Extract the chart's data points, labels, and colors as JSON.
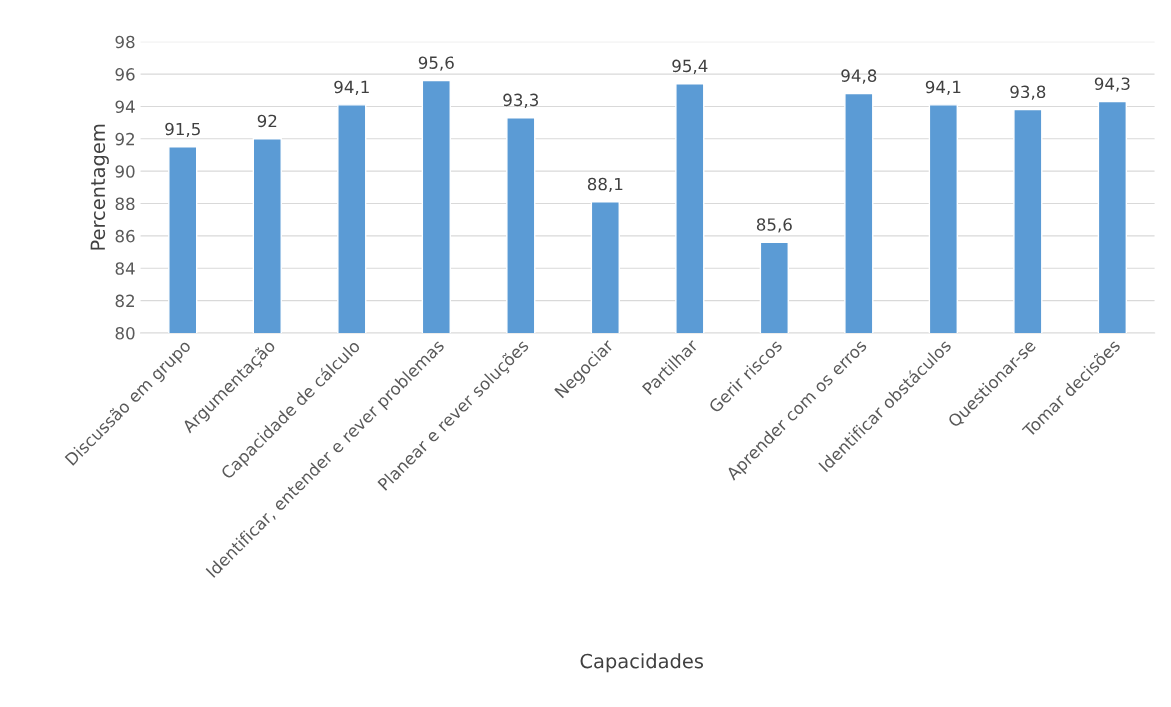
{
  "chart_data": {
    "type": "bar",
    "xlabel": "Capacidades",
    "ylabel": "Percentagem",
    "categories": [
      "Discussão em grupo",
      "Argumentação",
      "Capacidade de cálculo",
      "Identificar, entender e rever problemas",
      "Planear e rever soluções",
      "Negociar",
      "Partilhar",
      "Gerir riscos",
      "Aprender com os erros",
      "Identificar obstáculos",
      "Questionar-se",
      "Tomar decisões"
    ],
    "values": [
      91.5,
      92,
      94.1,
      95.6,
      93.3,
      88.1,
      95.4,
      85.6,
      94.8,
      94.1,
      93.8,
      94.3
    ],
    "value_labels": [
      "91,5",
      "92",
      "94,1",
      "95,6",
      "93,3",
      "88,1",
      "95,4",
      "85,6",
      "94,8",
      "94,1",
      "93,8",
      "94,3"
    ],
    "color": "#5b9bd5",
    "ylim": [
      80,
      98
    ],
    "yticks": [
      80,
      82,
      84,
      86,
      88,
      90,
      92,
      94,
      96,
      98
    ],
    "grid": "y"
  }
}
